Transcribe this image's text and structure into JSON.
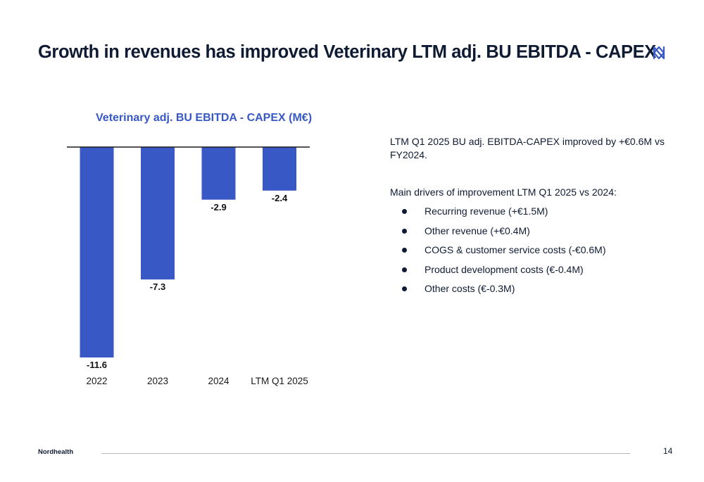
{
  "slide": {
    "title": "Growth in revenues has improved Veterinary LTM adj. BU EBITDA - CAPEX",
    "logo_icon": "nordhealth-logo-icon"
  },
  "chart_data": {
    "type": "bar",
    "title": "Veterinary adj. BU EBITDA - CAPEX (M€)",
    "xlabel": "",
    "ylabel": "",
    "categories": [
      "2022",
      "2023",
      "2024",
      "LTM Q1 2025"
    ],
    "values": [
      -11.6,
      -7.3,
      -2.9,
      -2.4
    ],
    "value_labels": [
      "-11.6",
      "-7.3",
      "-2.9",
      "-2.4"
    ],
    "ylim": [
      -11.6,
      0
    ],
    "grid": false,
    "legend": "none",
    "bar_color": "#3858c5"
  },
  "commentary": {
    "intro": "LTM Q1 2025 BU adj. EBITDA-CAPEX improved by +€0.6M vs FY2024.",
    "drivers_heading": "Main drivers of improvement LTM Q1 2025 vs 2024:",
    "drivers": [
      "Recurring revenue (+€1.5M)",
      "Other revenue (+€0.4M)",
      "COGS & customer service costs (-€0.6M)",
      "Product development costs (€-0.4M)",
      "Other costs (€-0.3M)"
    ]
  },
  "footer": {
    "brand": "Nordhealth",
    "page_number": "14"
  }
}
